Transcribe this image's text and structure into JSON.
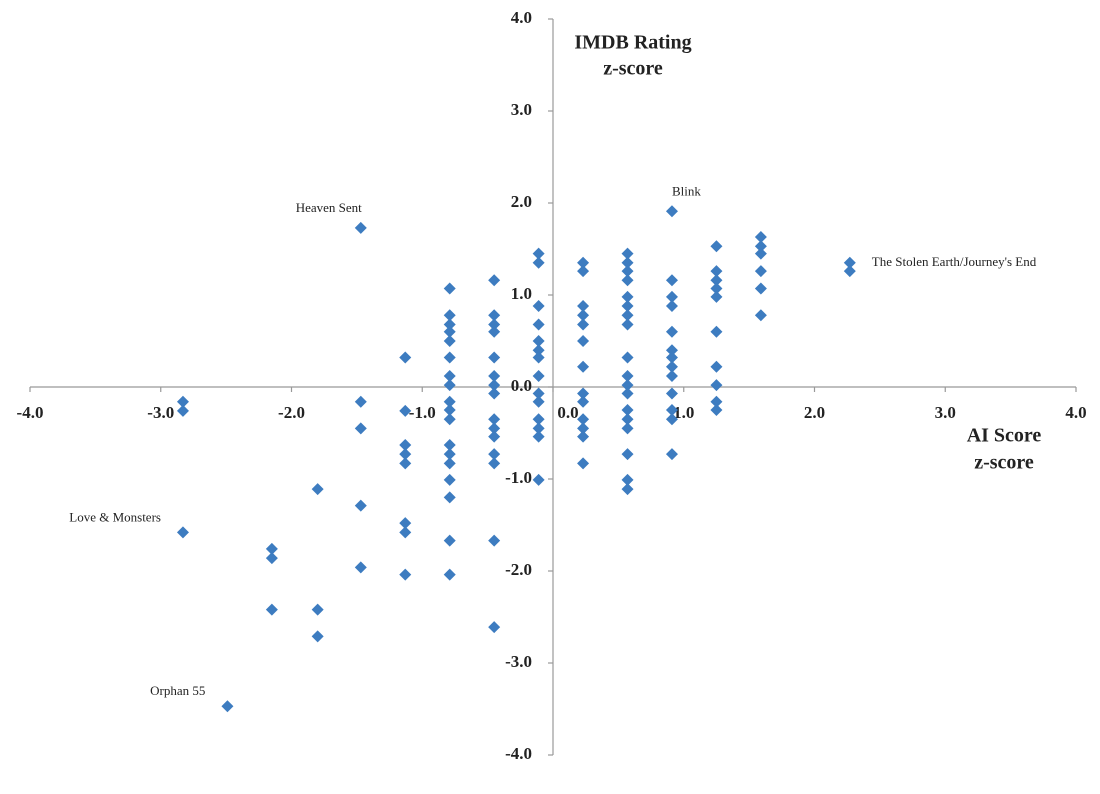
{
  "chart_data": {
    "type": "scatter",
    "xlabel": [
      "AI Score",
      "z-score"
    ],
    "ylabel": [
      "IMDB Rating",
      "z-score"
    ],
    "color": "#3d7cc0",
    "xlim": [
      -4,
      4
    ],
    "ylim": [
      -4,
      4
    ],
    "xticks": [
      {
        "value": -4,
        "label": "-4.0"
      },
      {
        "value": -3,
        "label": "-3.0"
      },
      {
        "value": -2,
        "label": "-2.0"
      },
      {
        "value": -1,
        "label": "-1.0"
      },
      {
        "value": 0,
        "label": "0.0"
      },
      {
        "value": 1,
        "label": "1.0"
      },
      {
        "value": 2,
        "label": "2.0"
      },
      {
        "value": 3,
        "label": "3.0"
      },
      {
        "value": 4,
        "label": "4.0"
      }
    ],
    "yticks": [
      {
        "value": -4,
        "label": "-4.0"
      },
      {
        "value": -3,
        "label": "-3.0"
      },
      {
        "value": -2,
        "label": "-2.0"
      },
      {
        "value": -1,
        "label": "-1.0"
      },
      {
        "value": 0,
        "label": "0.0"
      },
      {
        "value": 1,
        "label": "1.0"
      },
      {
        "value": 2,
        "label": "2.0"
      },
      {
        "value": 3,
        "label": "3.0"
      },
      {
        "value": 4,
        "label": "4.0"
      }
    ],
    "x": [
      -2.83,
      -2.83,
      -2.83,
      -2.49,
      -2.15,
      -2.15,
      -2.15,
      -1.8,
      -1.8,
      -1.8,
      -1.47,
      -1.47,
      -1.47,
      -1.47,
      -1.47,
      -1.13,
      -1.13,
      -1.13,
      -1.13,
      -1.13,
      -1.13,
      -1.13,
      -1.13,
      -0.79,
      -0.79,
      -0.79,
      -0.79,
      -0.79,
      -0.79,
      -0.79,
      -0.79,
      -0.79,
      -0.79,
      -0.79,
      -0.79,
      -0.79,
      -0.79,
      -0.79,
      -0.79,
      -0.79,
      -0.79,
      -0.45,
      -0.45,
      -0.45,
      -0.45,
      -0.45,
      -0.45,
      -0.45,
      -0.45,
      -0.45,
      -0.45,
      -0.45,
      -0.45,
      -0.45,
      -0.45,
      -0.45,
      -0.11,
      -0.11,
      -0.11,
      -0.11,
      -0.11,
      -0.11,
      -0.11,
      -0.11,
      -0.11,
      -0.11,
      -0.11,
      -0.11,
      -0.11,
      -0.11,
      0.23,
      0.23,
      0.23,
      0.23,
      0.23,
      0.23,
      0.23,
      0.23,
      0.23,
      0.23,
      0.23,
      0.23,
      0.23,
      0.57,
      0.57,
      0.57,
      0.57,
      0.57,
      0.57,
      0.57,
      0.57,
      0.57,
      0.57,
      0.57,
      0.57,
      0.57,
      0.57,
      0.57,
      0.57,
      0.57,
      0.57,
      0.91,
      0.91,
      0.91,
      0.91,
      0.91,
      0.91,
      0.91,
      0.91,
      0.91,
      0.91,
      0.91,
      0.91,
      0.91,
      1.25,
      1.25,
      1.25,
      1.25,
      1.25,
      1.25,
      1.25,
      1.25,
      1.25,
      1.25,
      1.59,
      1.59,
      1.59,
      1.59,
      1.59,
      1.59,
      2.27,
      2.27
    ],
    "y": [
      -0.16,
      -0.26,
      -1.58,
      -3.47,
      -1.76,
      -1.86,
      -2.42,
      -1.11,
      -2.42,
      -2.71,
      1.73,
      -0.16,
      -0.45,
      -1.29,
      -1.96,
      0.32,
      -0.26,
      -0.63,
      -0.73,
      -0.83,
      -1.48,
      -1.58,
      -2.04,
      1.07,
      0.78,
      0.68,
      0.6,
      0.5,
      0.32,
      0.12,
      0.02,
      -0.16,
      -0.25,
      -0.35,
      -0.63,
      -0.73,
      -0.83,
      -1.01,
      -1.2,
      -1.67,
      -2.04,
      1.16,
      0.78,
      0.68,
      0.6,
      0.32,
      0.12,
      0.02,
      -0.07,
      -0.35,
      -0.45,
      -0.54,
      -0.73,
      -0.83,
      -1.67,
      -2.61,
      1.45,
      1.35,
      0.88,
      0.68,
      0.5,
      0.4,
      0.32,
      0.12,
      -0.07,
      -0.16,
      -0.35,
      -0.45,
      -0.54,
      -1.01,
      1.35,
      1.26,
      0.88,
      0.78,
      0.68,
      0.5,
      0.22,
      -0.07,
      -0.16,
      -0.35,
      -0.45,
      -0.54,
      -0.83,
      1.45,
      1.35,
      1.26,
      1.16,
      0.98,
      0.88,
      0.78,
      0.68,
      0.32,
      0.12,
      0.02,
      -0.07,
      -0.25,
      -0.35,
      -0.45,
      -0.73,
      -1.01,
      -1.11,
      1.91,
      1.16,
      0.98,
      0.88,
      0.6,
      0.4,
      0.32,
      0.22,
      0.12,
      -0.07,
      -0.25,
      -0.35,
      -0.73,
      1.53,
      1.26,
      1.16,
      1.07,
      0.98,
      0.6,
      0.22,
      0.02,
      -0.16,
      -0.25,
      1.63,
      1.53,
      1.45,
      1.26,
      1.07,
      0.78,
      1.35,
      1.26
    ],
    "point_labels": [
      null,
      null,
      "Love & Monsters",
      "Orphan 55",
      null,
      null,
      null,
      null,
      null,
      null,
      "Heaven Sent",
      null,
      null,
      null,
      null,
      null,
      null,
      null,
      null,
      null,
      null,
      null,
      null,
      null,
      null,
      null,
      null,
      null,
      null,
      null,
      null,
      null,
      null,
      null,
      null,
      null,
      null,
      null,
      null,
      null,
      null,
      null,
      null,
      null,
      null,
      null,
      null,
      null,
      null,
      null,
      null,
      null,
      null,
      null,
      null,
      null,
      null,
      null,
      null,
      null,
      null,
      null,
      null,
      null,
      null,
      null,
      null,
      null,
      null,
      null,
      null,
      null,
      null,
      null,
      null,
      null,
      null,
      null,
      null,
      null,
      null,
      null,
      null,
      null,
      null,
      null,
      null,
      null,
      null,
      null,
      null,
      null,
      null,
      null,
      null,
      null,
      null,
      null,
      null,
      null,
      null,
      "Blink",
      null,
      null,
      null,
      null,
      null,
      null,
      null,
      null,
      null,
      null,
      null,
      null,
      null,
      null,
      null,
      null,
      null,
      null,
      null,
      null,
      null,
      null,
      null,
      null,
      null,
      null,
      null,
      null,
      "The Stolen Earth/Journey's End",
      null
    ]
  }
}
